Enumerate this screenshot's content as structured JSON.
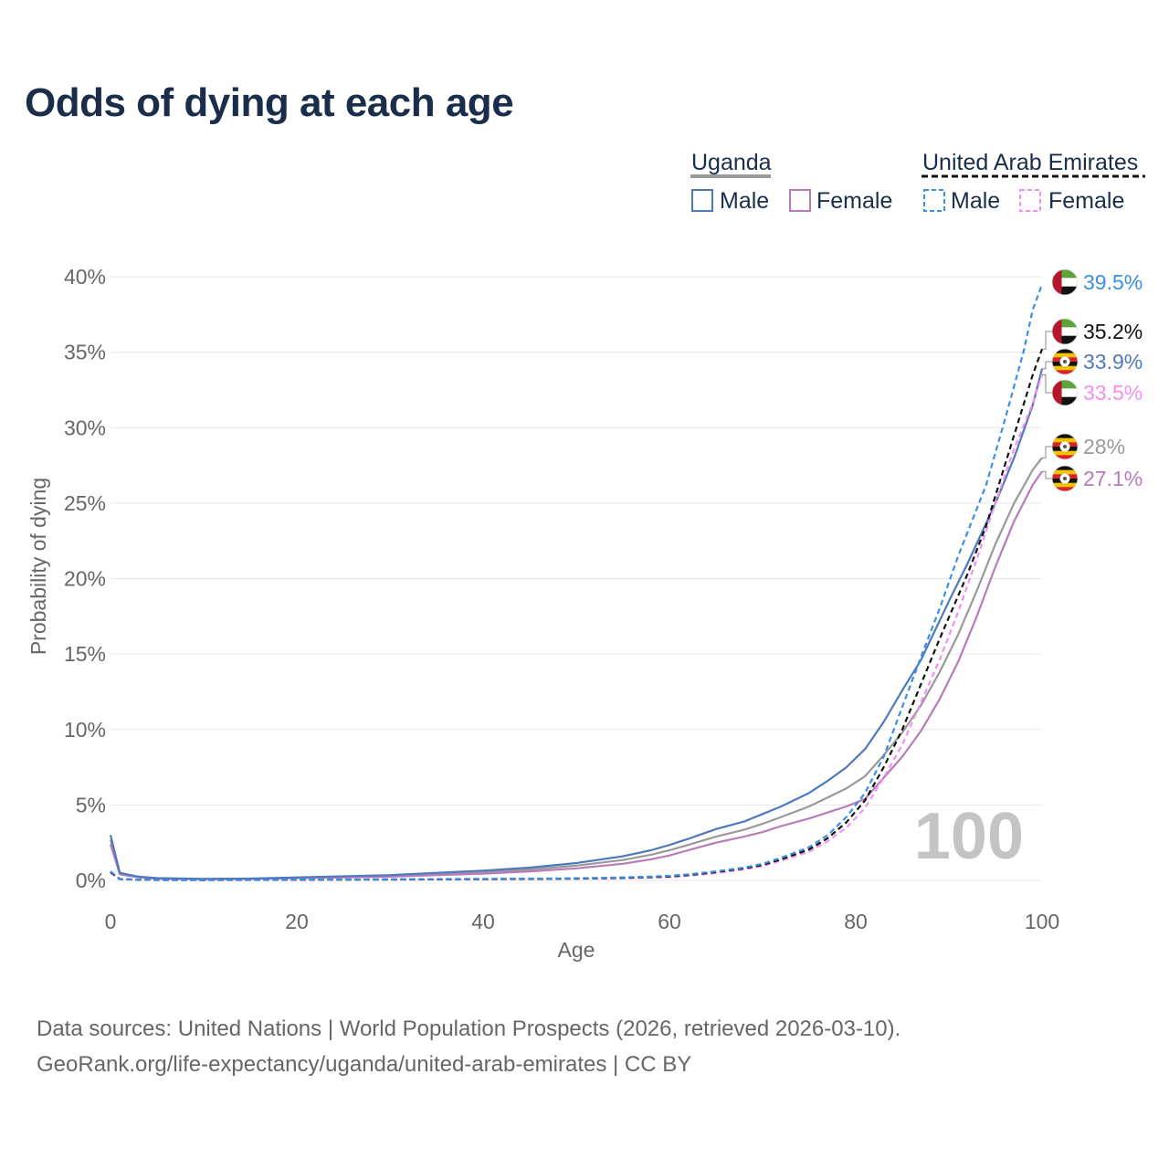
{
  "title": "Odds of dying at each age",
  "legend": {
    "groups": [
      {
        "name": "Uganda",
        "items": [
          "Male",
          "Female"
        ]
      },
      {
        "name": "United Arab Emirates",
        "items": [
          "Male",
          "Female"
        ]
      }
    ]
  },
  "watermark": "100",
  "source": {
    "line1": "Data sources: United Nations | World Population Prospects (2026, retrieved 2026-03-10).",
    "line2": "GeoRank.org/life-expectancy/uganda/united-arab-emirates | CC BY"
  },
  "colors": {
    "uganda_male": "#4e79bf",
    "uganda_female": "#b87bba",
    "uganda_total": "#999999",
    "uae_male": "#3a8fe8",
    "uae_female": "#f58ff0",
    "uae_total": "#111111"
  },
  "chart_data": {
    "type": "line",
    "title": "Odds of dying at each age",
    "xlabel": "Age",
    "ylabel": "Probability of dying",
    "xlim": [
      0,
      100
    ],
    "ylim": [
      0,
      40
    ],
    "xticks": [
      0,
      20,
      40,
      60,
      80,
      100
    ],
    "xtick_labels": [
      "0",
      "20",
      "40",
      "60",
      "80",
      "100"
    ],
    "yticks": [
      0,
      5,
      10,
      15,
      20,
      25,
      30,
      35,
      40
    ],
    "ytick_labels": [
      "0%",
      "5%",
      "10%",
      "15%",
      "20%",
      "25%",
      "30%",
      "35%",
      "40%"
    ],
    "grid": true,
    "series": [
      {
        "name": "Uganda Male",
        "key": "uganda_male",
        "dashed": false,
        "x": [
          0,
          1,
          3,
          5,
          10,
          15,
          20,
          30,
          40,
          45,
          50,
          55,
          58,
          60,
          62,
          65,
          68,
          70,
          72,
          75,
          77,
          79,
          81,
          83,
          85,
          87,
          90,
          92,
          95,
          97,
          99,
          100
        ],
        "y": [
          3.0,
          0.5,
          0.25,
          0.15,
          0.1,
          0.12,
          0.2,
          0.35,
          0.65,
          0.85,
          1.15,
          1.6,
          2.0,
          2.35,
          2.75,
          3.4,
          3.9,
          4.4,
          4.9,
          5.8,
          6.6,
          7.5,
          8.7,
          10.5,
          12.6,
          14.6,
          18.5,
          21.0,
          25.0,
          28.0,
          31.5,
          33.9
        ],
        "end_label": "33.9%"
      },
      {
        "name": "Uganda Female",
        "key": "uganda_female",
        "dashed": false,
        "x": [
          0,
          1,
          3,
          5,
          10,
          15,
          20,
          30,
          40,
          45,
          50,
          55,
          58,
          60,
          62,
          65,
          68,
          70,
          72,
          75,
          77,
          79,
          81,
          83,
          85,
          87,
          89,
          91,
          93,
          95,
          97,
          99,
          100
        ],
        "y": [
          2.4,
          0.4,
          0.2,
          0.12,
          0.08,
          0.1,
          0.15,
          0.25,
          0.45,
          0.6,
          0.8,
          1.1,
          1.4,
          1.65,
          2.0,
          2.5,
          2.9,
          3.2,
          3.6,
          4.1,
          4.5,
          4.9,
          5.4,
          6.8,
          8.2,
          9.9,
          12.0,
          14.5,
          17.5,
          20.8,
          23.8,
          26.2,
          27.1
        ],
        "end_label": "27.1%"
      },
      {
        "name": "Uganda",
        "key": "uganda_total",
        "dashed": false,
        "x": [
          0,
          1,
          3,
          5,
          10,
          15,
          20,
          30,
          40,
          45,
          50,
          55,
          58,
          60,
          62,
          65,
          68,
          70,
          72,
          75,
          77,
          79,
          81,
          83,
          85,
          87,
          89,
          91,
          93,
          95,
          97,
          99,
          100
        ],
        "y": [
          2.7,
          0.45,
          0.22,
          0.13,
          0.09,
          0.11,
          0.17,
          0.3,
          0.55,
          0.72,
          0.98,
          1.35,
          1.7,
          2.0,
          2.35,
          2.9,
          3.35,
          3.75,
          4.2,
          4.9,
          5.5,
          6.1,
          6.9,
          8.3,
          9.8,
          11.6,
          13.8,
          16.3,
          19.2,
          22.3,
          25.0,
          27.2,
          28.0
        ],
        "end_label": "28%"
      },
      {
        "name": "United Arab Emirates Male",
        "key": "uae_male",
        "dashed": true,
        "x": [
          0,
          1,
          3,
          5,
          10,
          20,
          30,
          40,
          50,
          55,
          58,
          60,
          62,
          65,
          68,
          70,
          72,
          75,
          77,
          79,
          81,
          83,
          85,
          87,
          89,
          91,
          94,
          96,
          98,
          99,
          100
        ],
        "y": [
          0.6,
          0.1,
          0.05,
          0.03,
          0.03,
          0.05,
          0.07,
          0.1,
          0.14,
          0.2,
          0.25,
          0.3,
          0.4,
          0.6,
          0.85,
          1.1,
          1.5,
          2.2,
          3.0,
          4.2,
          5.8,
          8.2,
          11.5,
          14.8,
          18.0,
          21.5,
          26.2,
          30.5,
          35.0,
          37.8,
          39.5
        ],
        "end_label": "39.5%"
      },
      {
        "name": "United Arab Emirates Female",
        "key": "uae_female",
        "dashed": true,
        "x": [
          0,
          1,
          3,
          5,
          10,
          20,
          30,
          40,
          50,
          55,
          58,
          60,
          62,
          65,
          68,
          70,
          72,
          75,
          77,
          79,
          81,
          83,
          85,
          87,
          89,
          91,
          93,
          95,
          97,
          99,
          100
        ],
        "y": [
          0.5,
          0.08,
          0.04,
          0.03,
          0.02,
          0.03,
          0.05,
          0.07,
          0.1,
          0.14,
          0.18,
          0.22,
          0.3,
          0.48,
          0.72,
          0.95,
          1.3,
          1.9,
          2.6,
          3.5,
          4.8,
          6.8,
          9.0,
          11.8,
          14.6,
          17.8,
          21.3,
          25.0,
          28.6,
          31.6,
          33.5
        ],
        "end_label": "33.5%"
      },
      {
        "name": "United Arab Emirates",
        "key": "uae_total",
        "dashed": true,
        "x": [
          0,
          1,
          3,
          5,
          10,
          20,
          30,
          40,
          50,
          55,
          58,
          60,
          62,
          65,
          68,
          70,
          72,
          75,
          77,
          79,
          81,
          83,
          85,
          87,
          89,
          92,
          94,
          96,
          98,
          99,
          100
        ],
        "y": [
          0.55,
          0.09,
          0.045,
          0.03,
          0.025,
          0.04,
          0.06,
          0.085,
          0.12,
          0.17,
          0.22,
          0.26,
          0.35,
          0.55,
          0.8,
          1.02,
          1.4,
          2.05,
          2.8,
          3.85,
          5.3,
          7.5,
          10.0,
          13.0,
          16.0,
          20.3,
          23.5,
          27.5,
          31.5,
          33.5,
          35.2
        ],
        "end_label": "35.2%"
      }
    ],
    "end_labels": [
      {
        "series": "uae_male",
        "flag": "uae",
        "text": "39.5%"
      },
      {
        "series": "uae_total",
        "flag": "uae",
        "text": "35.2%"
      },
      {
        "series": "uganda_male",
        "flag": "uganda",
        "text": "33.9%"
      },
      {
        "series": "uae_female",
        "flag": "uae",
        "text": "33.5%"
      },
      {
        "series": "uganda_total",
        "flag": "uganda",
        "text": "28%"
      },
      {
        "series": "uganda_female",
        "flag": "uganda",
        "text": "27.1%"
      }
    ]
  }
}
